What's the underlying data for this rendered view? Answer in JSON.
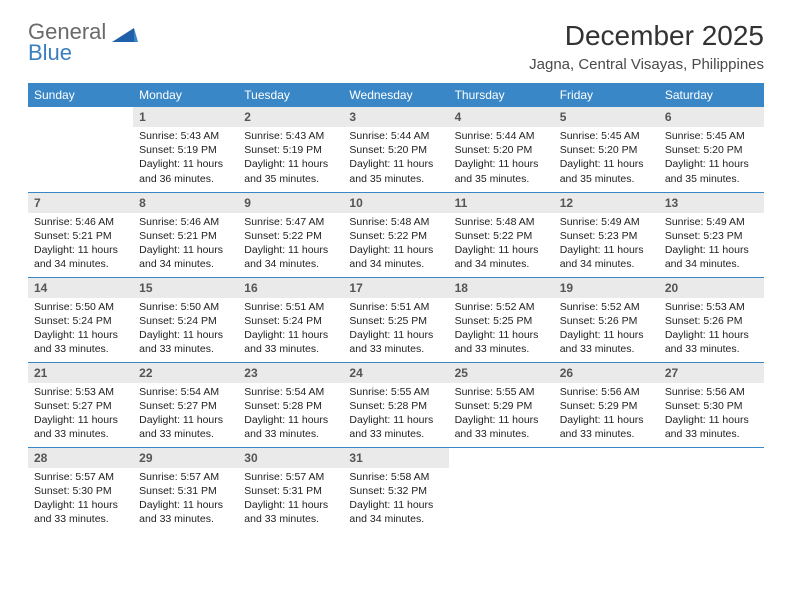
{
  "brand": {
    "line1": "General",
    "line2": "Blue"
  },
  "title": "December 2025",
  "location": "Jagna, Central Visayas, Philippines",
  "colors": {
    "header_bg": "#3a87c7",
    "header_text": "#ffffff",
    "daynum_bg": "#eaeaea",
    "row_border": "#3a87c7",
    "logo_gray": "#6a6a6a",
    "logo_blue": "#3a7fbf"
  },
  "weekdays": [
    "Sunday",
    "Monday",
    "Tuesday",
    "Wednesday",
    "Thursday",
    "Friday",
    "Saturday"
  ],
  "weeks": [
    [
      null,
      {
        "d": "1",
        "sr": "Sunrise: 5:43 AM",
        "ss": "Sunset: 5:19 PM",
        "dl1": "Daylight: 11 hours",
        "dl2": "and 36 minutes."
      },
      {
        "d": "2",
        "sr": "Sunrise: 5:43 AM",
        "ss": "Sunset: 5:19 PM",
        "dl1": "Daylight: 11 hours",
        "dl2": "and 35 minutes."
      },
      {
        "d": "3",
        "sr": "Sunrise: 5:44 AM",
        "ss": "Sunset: 5:20 PM",
        "dl1": "Daylight: 11 hours",
        "dl2": "and 35 minutes."
      },
      {
        "d": "4",
        "sr": "Sunrise: 5:44 AM",
        "ss": "Sunset: 5:20 PM",
        "dl1": "Daylight: 11 hours",
        "dl2": "and 35 minutes."
      },
      {
        "d": "5",
        "sr": "Sunrise: 5:45 AM",
        "ss": "Sunset: 5:20 PM",
        "dl1": "Daylight: 11 hours",
        "dl2": "and 35 minutes."
      },
      {
        "d": "6",
        "sr": "Sunrise: 5:45 AM",
        "ss": "Sunset: 5:20 PM",
        "dl1": "Daylight: 11 hours",
        "dl2": "and 35 minutes."
      }
    ],
    [
      {
        "d": "7",
        "sr": "Sunrise: 5:46 AM",
        "ss": "Sunset: 5:21 PM",
        "dl1": "Daylight: 11 hours",
        "dl2": "and 34 minutes."
      },
      {
        "d": "8",
        "sr": "Sunrise: 5:46 AM",
        "ss": "Sunset: 5:21 PM",
        "dl1": "Daylight: 11 hours",
        "dl2": "and 34 minutes."
      },
      {
        "d": "9",
        "sr": "Sunrise: 5:47 AM",
        "ss": "Sunset: 5:22 PM",
        "dl1": "Daylight: 11 hours",
        "dl2": "and 34 minutes."
      },
      {
        "d": "10",
        "sr": "Sunrise: 5:48 AM",
        "ss": "Sunset: 5:22 PM",
        "dl1": "Daylight: 11 hours",
        "dl2": "and 34 minutes."
      },
      {
        "d": "11",
        "sr": "Sunrise: 5:48 AM",
        "ss": "Sunset: 5:22 PM",
        "dl1": "Daylight: 11 hours",
        "dl2": "and 34 minutes."
      },
      {
        "d": "12",
        "sr": "Sunrise: 5:49 AM",
        "ss": "Sunset: 5:23 PM",
        "dl1": "Daylight: 11 hours",
        "dl2": "and 34 minutes."
      },
      {
        "d": "13",
        "sr": "Sunrise: 5:49 AM",
        "ss": "Sunset: 5:23 PM",
        "dl1": "Daylight: 11 hours",
        "dl2": "and 34 minutes."
      }
    ],
    [
      {
        "d": "14",
        "sr": "Sunrise: 5:50 AM",
        "ss": "Sunset: 5:24 PM",
        "dl1": "Daylight: 11 hours",
        "dl2": "and 33 minutes."
      },
      {
        "d": "15",
        "sr": "Sunrise: 5:50 AM",
        "ss": "Sunset: 5:24 PM",
        "dl1": "Daylight: 11 hours",
        "dl2": "and 33 minutes."
      },
      {
        "d": "16",
        "sr": "Sunrise: 5:51 AM",
        "ss": "Sunset: 5:24 PM",
        "dl1": "Daylight: 11 hours",
        "dl2": "and 33 minutes."
      },
      {
        "d": "17",
        "sr": "Sunrise: 5:51 AM",
        "ss": "Sunset: 5:25 PM",
        "dl1": "Daylight: 11 hours",
        "dl2": "and 33 minutes."
      },
      {
        "d": "18",
        "sr": "Sunrise: 5:52 AM",
        "ss": "Sunset: 5:25 PM",
        "dl1": "Daylight: 11 hours",
        "dl2": "and 33 minutes."
      },
      {
        "d": "19",
        "sr": "Sunrise: 5:52 AM",
        "ss": "Sunset: 5:26 PM",
        "dl1": "Daylight: 11 hours",
        "dl2": "and 33 minutes."
      },
      {
        "d": "20",
        "sr": "Sunrise: 5:53 AM",
        "ss": "Sunset: 5:26 PM",
        "dl1": "Daylight: 11 hours",
        "dl2": "and 33 minutes."
      }
    ],
    [
      {
        "d": "21",
        "sr": "Sunrise: 5:53 AM",
        "ss": "Sunset: 5:27 PM",
        "dl1": "Daylight: 11 hours",
        "dl2": "and 33 minutes."
      },
      {
        "d": "22",
        "sr": "Sunrise: 5:54 AM",
        "ss": "Sunset: 5:27 PM",
        "dl1": "Daylight: 11 hours",
        "dl2": "and 33 minutes."
      },
      {
        "d": "23",
        "sr": "Sunrise: 5:54 AM",
        "ss": "Sunset: 5:28 PM",
        "dl1": "Daylight: 11 hours",
        "dl2": "and 33 minutes."
      },
      {
        "d": "24",
        "sr": "Sunrise: 5:55 AM",
        "ss": "Sunset: 5:28 PM",
        "dl1": "Daylight: 11 hours",
        "dl2": "and 33 minutes."
      },
      {
        "d": "25",
        "sr": "Sunrise: 5:55 AM",
        "ss": "Sunset: 5:29 PM",
        "dl1": "Daylight: 11 hours",
        "dl2": "and 33 minutes."
      },
      {
        "d": "26",
        "sr": "Sunrise: 5:56 AM",
        "ss": "Sunset: 5:29 PM",
        "dl1": "Daylight: 11 hours",
        "dl2": "and 33 minutes."
      },
      {
        "d": "27",
        "sr": "Sunrise: 5:56 AM",
        "ss": "Sunset: 5:30 PM",
        "dl1": "Daylight: 11 hours",
        "dl2": "and 33 minutes."
      }
    ],
    [
      {
        "d": "28",
        "sr": "Sunrise: 5:57 AM",
        "ss": "Sunset: 5:30 PM",
        "dl1": "Daylight: 11 hours",
        "dl2": "and 33 minutes."
      },
      {
        "d": "29",
        "sr": "Sunrise: 5:57 AM",
        "ss": "Sunset: 5:31 PM",
        "dl1": "Daylight: 11 hours",
        "dl2": "and 33 minutes."
      },
      {
        "d": "30",
        "sr": "Sunrise: 5:57 AM",
        "ss": "Sunset: 5:31 PM",
        "dl1": "Daylight: 11 hours",
        "dl2": "and 33 minutes."
      },
      {
        "d": "31",
        "sr": "Sunrise: 5:58 AM",
        "ss": "Sunset: 5:32 PM",
        "dl1": "Daylight: 11 hours",
        "dl2": "and 34 minutes."
      },
      null,
      null,
      null
    ]
  ]
}
